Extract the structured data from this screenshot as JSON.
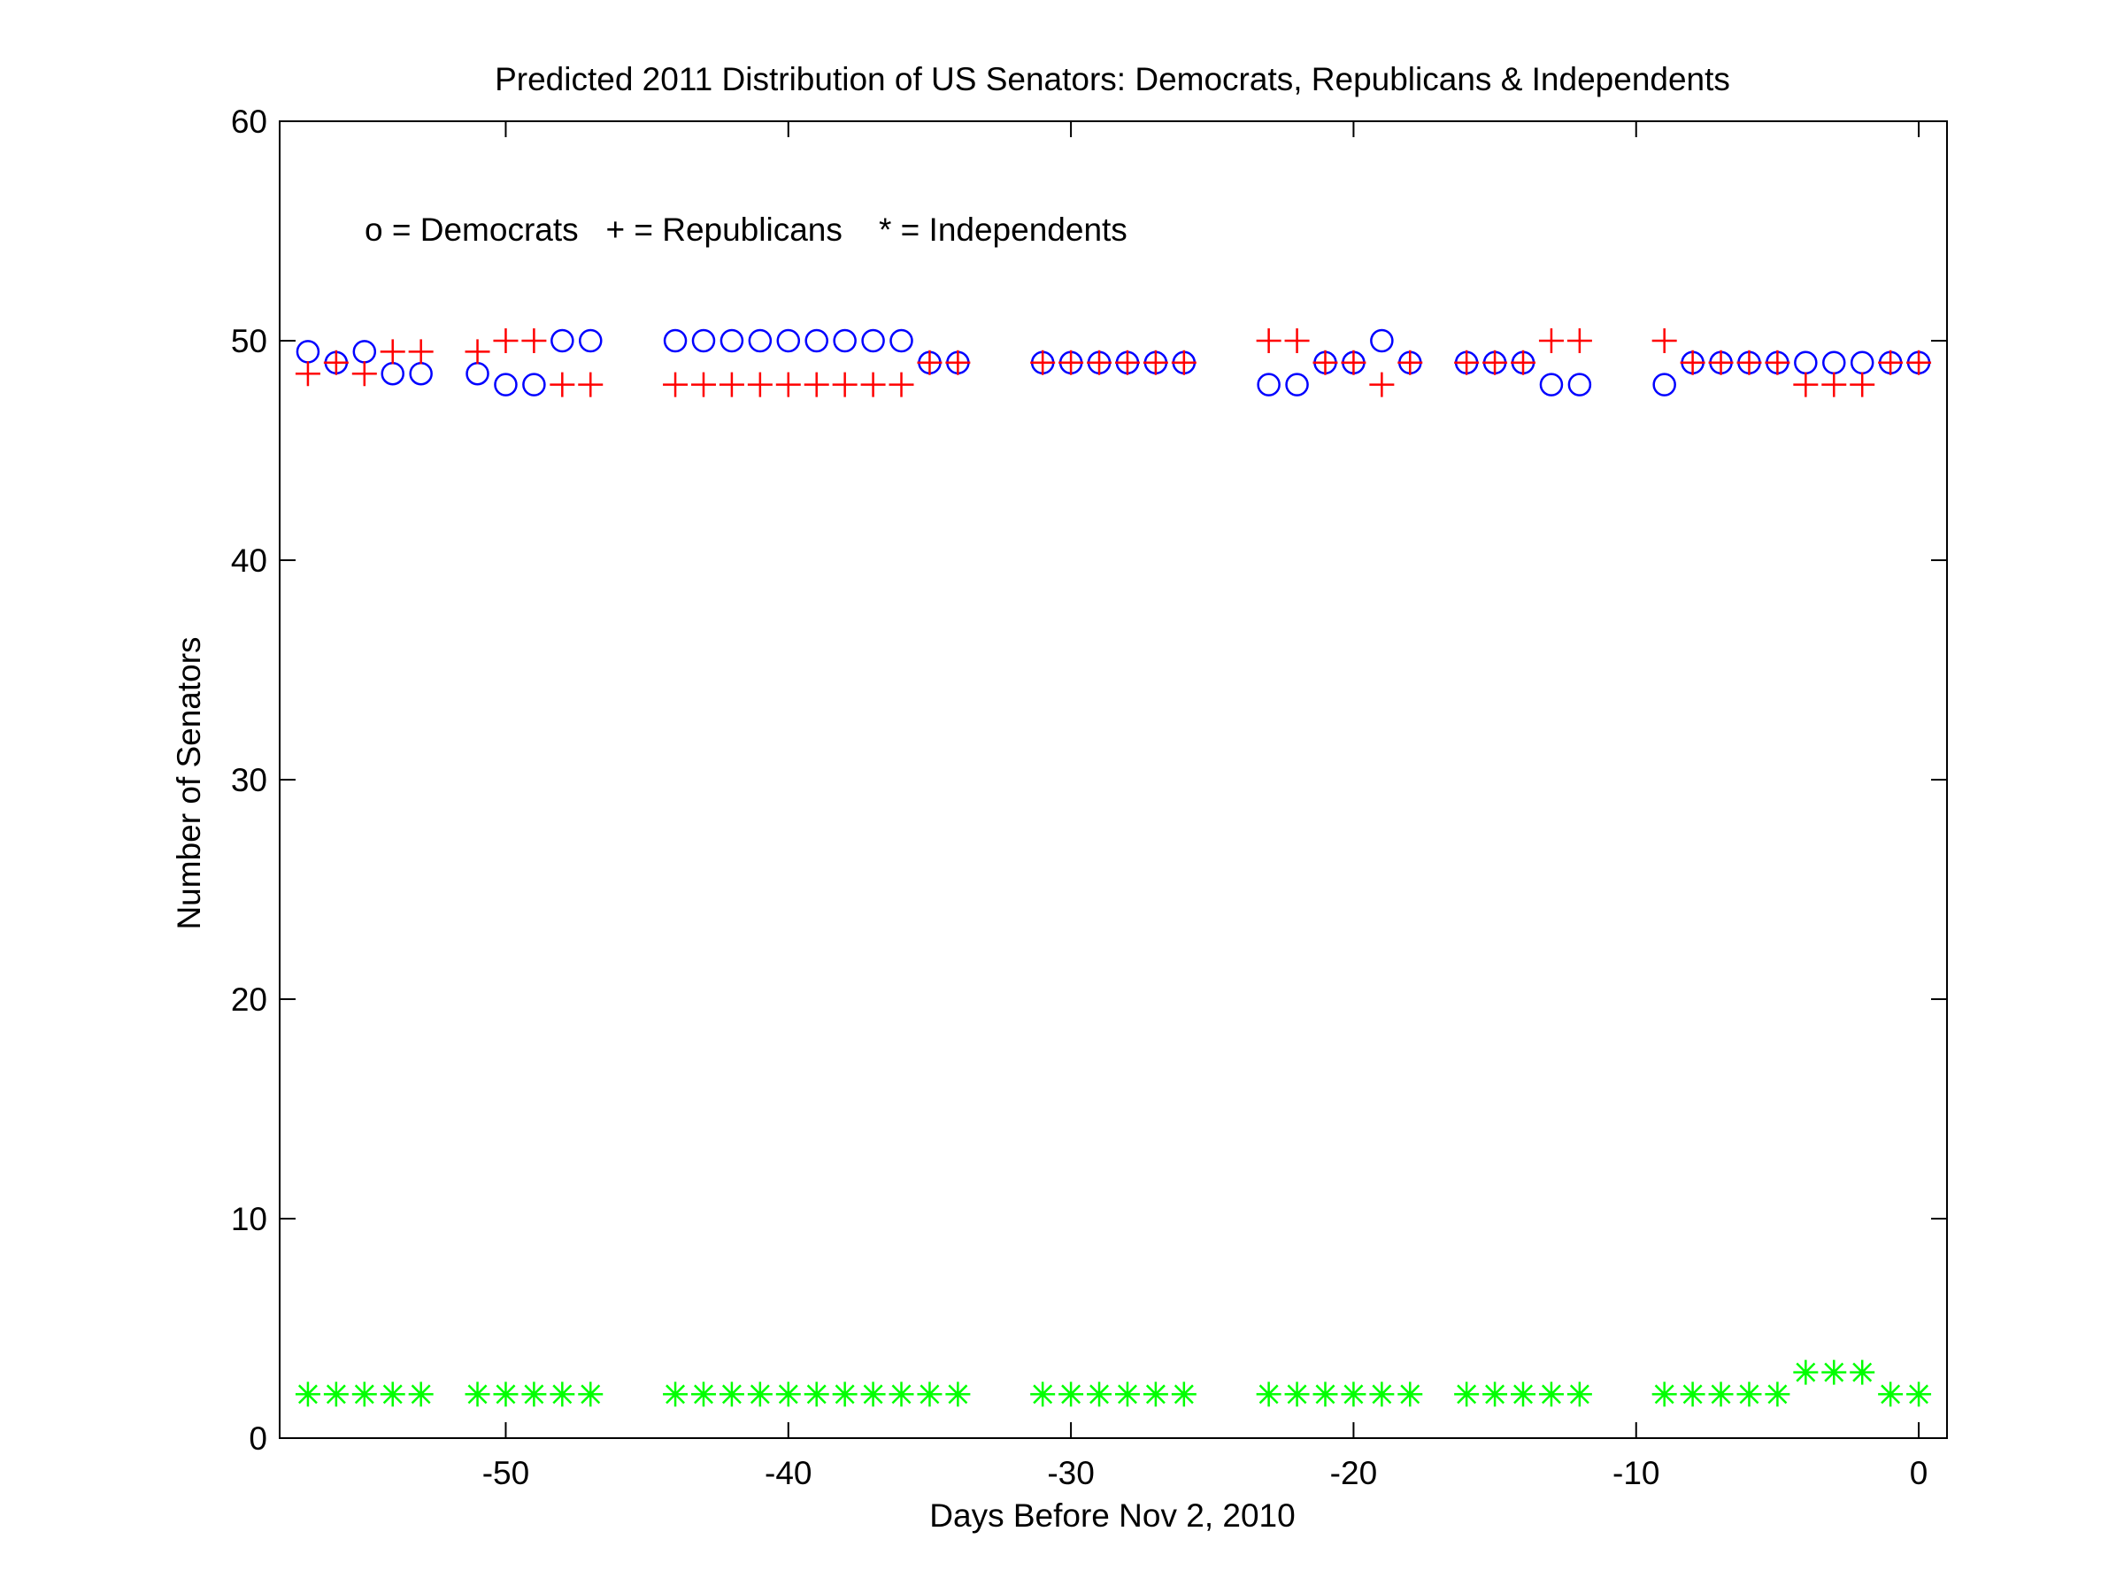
{
  "chart_data": {
    "type": "scatter",
    "title": "Predicted 2011 Distribution of US Senators: Democrats, Republicans & Independents",
    "xlabel": "Days Before Nov 2, 2010",
    "ylabel": "Number of Senators",
    "annotation": "o = Democrats   + = Republicans    * = Independents",
    "xlim": [
      -58,
      1
    ],
    "ylim": [
      0,
      60
    ],
    "xticks": [
      -50,
      -40,
      -30,
      -20,
      -10,
      0
    ],
    "yticks": [
      0,
      10,
      20,
      30,
      40,
      50,
      60
    ],
    "grid": false,
    "x": [
      -57,
      -56,
      -55,
      -54,
      -53,
      -51,
      -50,
      -49,
      -48,
      -47,
      -44,
      -43,
      -42,
      -41,
      -40,
      -39,
      -38,
      -37,
      -36,
      -35,
      -34,
      -31,
      -30,
      -29,
      -28,
      -27,
      -26,
      -23,
      -22,
      -21,
      -20,
      -19,
      -18,
      -16,
      -15,
      -14,
      -13,
      -12,
      -9,
      -8,
      -7,
      -6,
      -5,
      -4,
      -3,
      -2,
      -1,
      0
    ],
    "series": [
      {
        "name": "Democrats",
        "marker": "o",
        "color": "#0000ff",
        "values": [
          49.5,
          49,
          49.5,
          48.5,
          48.5,
          48.5,
          48,
          48,
          50,
          50,
          50,
          50,
          50,
          50,
          50,
          50,
          50,
          50,
          50,
          49,
          49,
          49,
          49,
          49,
          49,
          49,
          49,
          48,
          48,
          49,
          49,
          50,
          49,
          49,
          49,
          49,
          48,
          48,
          48,
          49,
          49,
          49,
          49,
          49,
          49,
          49,
          49,
          49
        ]
      },
      {
        "name": "Republicans",
        "marker": "+",
        "color": "#ff0000",
        "values": [
          48.5,
          49,
          48.5,
          49.5,
          49.5,
          49.5,
          50,
          50,
          48,
          48,
          48,
          48,
          48,
          48,
          48,
          48,
          48,
          48,
          48,
          49,
          49,
          49,
          49,
          49,
          49,
          49,
          49,
          50,
          50,
          49,
          49,
          48,
          49,
          49,
          49,
          49,
          50,
          50,
          50,
          49,
          49,
          49,
          49,
          48,
          48,
          48,
          49,
          49
        ]
      },
      {
        "name": "Independents",
        "marker": "*",
        "color": "#00ff00",
        "values": [
          2,
          2,
          2,
          2,
          2,
          2,
          2,
          2,
          2,
          2,
          2,
          2,
          2,
          2,
          2,
          2,
          2,
          2,
          2,
          2,
          2,
          2,
          2,
          2,
          2,
          2,
          2,
          2,
          2,
          2,
          2,
          2,
          2,
          2,
          2,
          2,
          2,
          2,
          2,
          2,
          2,
          2,
          2,
          3,
          3,
          3,
          2,
          2
        ]
      }
    ]
  }
}
